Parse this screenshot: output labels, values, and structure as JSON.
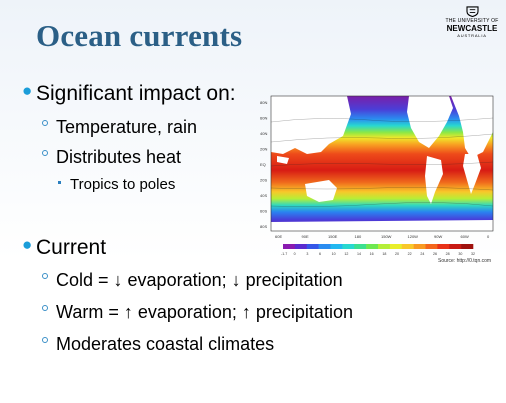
{
  "slide": {
    "title": "Ocean currents",
    "logo": {
      "line1": "THE UNIVERSITY OF",
      "line2": "NEWCASTLE",
      "line3": "AUSTRALIA",
      "icon": "crest-icon"
    },
    "bullets": [
      {
        "text": "Significant impact on:"
      },
      {
        "text": "Temperature, rain"
      },
      {
        "text": "Distributes heat"
      },
      {
        "text": "Tropics to poles"
      },
      {
        "text": "Current"
      },
      {
        "text": "Cold = ↓ evaporation; ↓ precipitation"
      },
      {
        "text": "Warm = ↑ evaporation; ↑ precipitation"
      },
      {
        "text": "Moderates coastal climates"
      }
    ],
    "figure": {
      "source": "Source: http://0.tqn.com",
      "lat_labels": [
        "80N",
        "60N",
        "40N",
        "20N",
        "EQ",
        "20S",
        "40S",
        "60S",
        "80S"
      ],
      "lon_labels": [
        "60E",
        "90E",
        "150E",
        "180",
        "150W",
        "120W",
        "90W",
        "60W",
        "0"
      ],
      "colorbar_labels": [
        "-1.7",
        "0",
        "3",
        "6",
        "10",
        "12",
        "14",
        "16",
        "18",
        "20",
        "22",
        "24",
        "26",
        "28",
        "30",
        "32"
      ],
      "colorbar_colors": [
        "#8a1bb0",
        "#5a2bd0",
        "#3557e8",
        "#2a8cf0",
        "#22b8f0",
        "#28d8d0",
        "#3ce090",
        "#6ee850",
        "#b4ee38",
        "#e8ee2a",
        "#f8c82a",
        "#f89a22",
        "#f4661c",
        "#e83218",
        "#c81a14",
        "#a0120e"
      ]
    },
    "colors": {
      "title": "#2b5f86",
      "bullet": "#1b9dd9"
    }
  }
}
